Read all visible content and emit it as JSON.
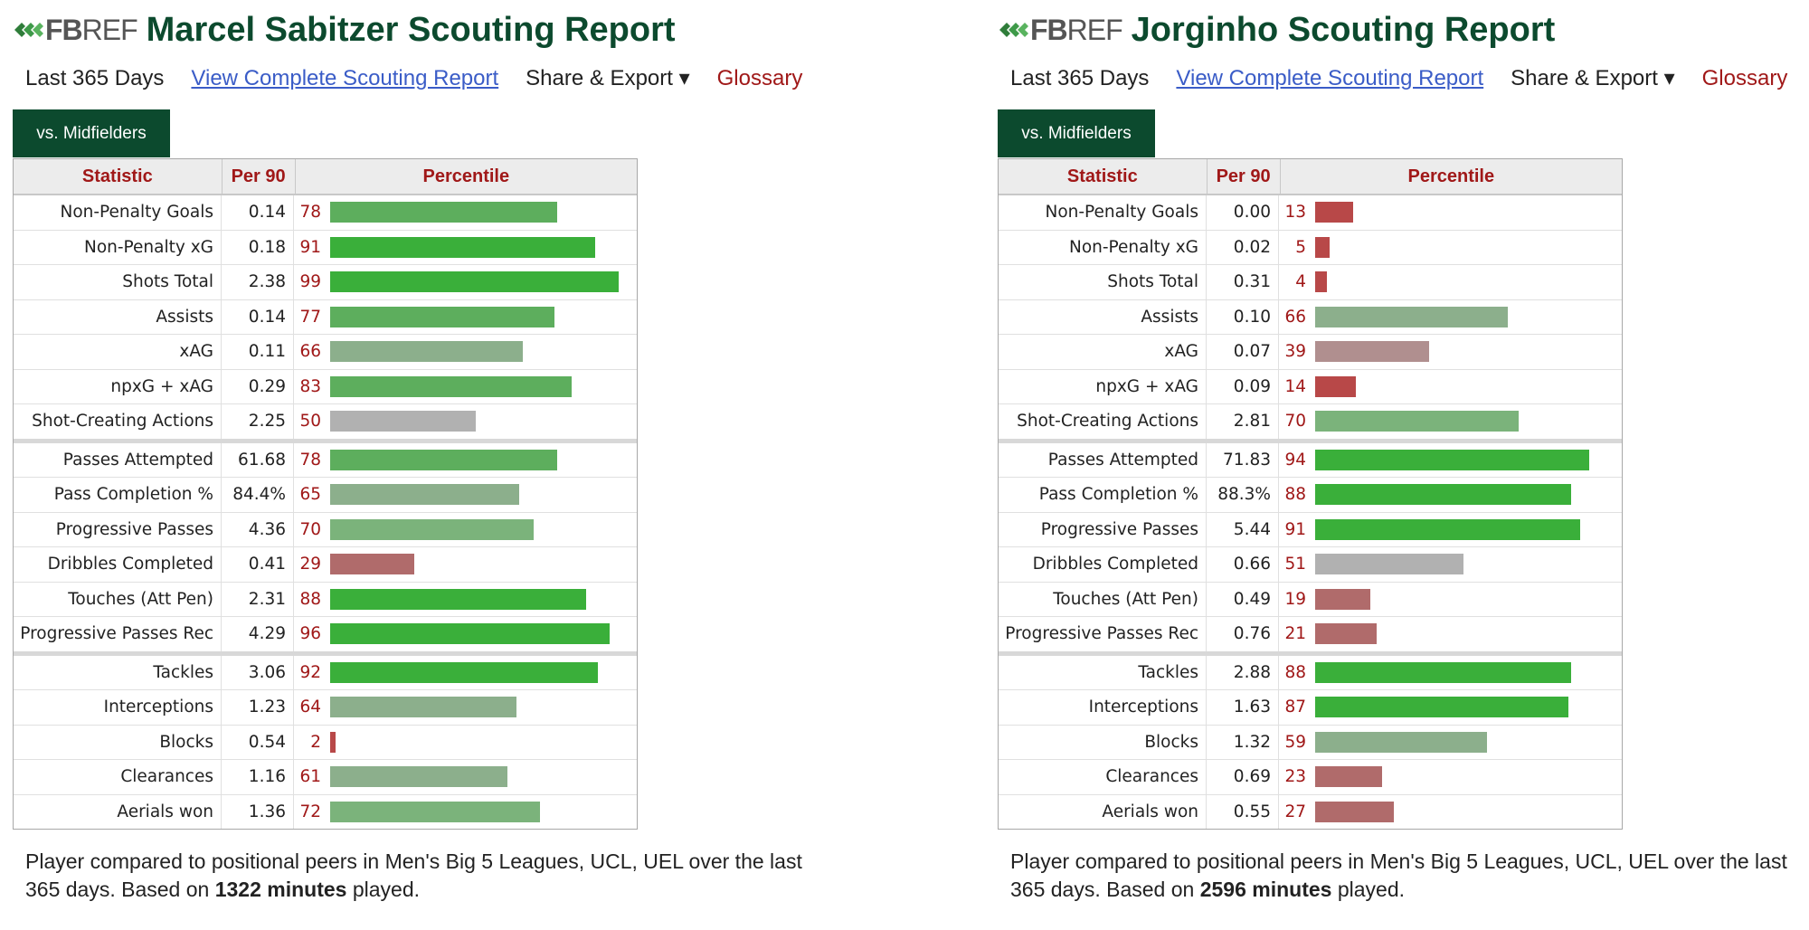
{
  "logo": {
    "fb": "FB",
    "ref": "REF"
  },
  "bar_colors": {
    "elite": "#3aaf3a",
    "above": "#5dae5d",
    "good": "#7bb37b",
    "slight": "#8caf8c",
    "avg": "#b1b1b1",
    "below_slight": "#b08f8f",
    "below": "#b06b6b",
    "poor": "#b84848"
  },
  "panels": [
    {
      "title": "Marcel Sabitzer Scouting Report",
      "nav": {
        "period": "Last 365 Days",
        "full_report": "View Complete Scouting Report",
        "share": "Share & Export ▾",
        "glossary": "Glossary"
      },
      "tab": "vs. Midfielders",
      "headers": {
        "stat": "Statistic",
        "per90": "Per 90",
        "percentile": "Percentile"
      },
      "rows": [
        {
          "stat": "Non-Penalty Goals",
          "per90": "0.14",
          "percentile": 78
        },
        {
          "stat": "Non-Penalty xG",
          "per90": "0.18",
          "percentile": 91
        },
        {
          "stat": "Shots Total",
          "per90": "2.38",
          "percentile": 99
        },
        {
          "stat": "Assists",
          "per90": "0.14",
          "percentile": 77
        },
        {
          "stat": "xAG",
          "per90": "0.11",
          "percentile": 66
        },
        {
          "stat": "npxG + xAG",
          "per90": "0.29",
          "percentile": 83
        },
        {
          "stat": "Shot-Creating Actions",
          "per90": "2.25",
          "percentile": 50
        },
        {
          "stat": "Passes Attempted",
          "per90": "61.68",
          "percentile": 78
        },
        {
          "stat": "Pass Completion %",
          "per90": "84.4%",
          "percentile": 65
        },
        {
          "stat": "Progressive Passes",
          "per90": "4.36",
          "percentile": 70
        },
        {
          "stat": "Dribbles Completed",
          "per90": "0.41",
          "percentile": 29
        },
        {
          "stat": "Touches (Att Pen)",
          "per90": "2.31",
          "percentile": 88
        },
        {
          "stat": "Progressive Passes Rec",
          "per90": "4.29",
          "percentile": 96
        },
        {
          "stat": "Tackles",
          "per90": "3.06",
          "percentile": 92
        },
        {
          "stat": "Interceptions",
          "per90": "1.23",
          "percentile": 64
        },
        {
          "stat": "Blocks",
          "per90": "0.54",
          "percentile": 2
        },
        {
          "stat": "Clearances",
          "per90": "1.16",
          "percentile": 61
        },
        {
          "stat": "Aerials won",
          "per90": "1.36",
          "percentile": 72
        }
      ],
      "footer": {
        "line": "Player compared to positional peers in Men's Big 5 Leagues, UCL, UEL over the last 365 days. Based on",
        "minutes": "1322 minutes",
        "tail": "played."
      }
    },
    {
      "title": "Jorginho Scouting Report",
      "nav": {
        "period": "Last 365 Days",
        "full_report": "View Complete Scouting Report",
        "share": "Share & Export ▾",
        "glossary": "Glossary"
      },
      "tab": "vs. Midfielders",
      "headers": {
        "stat": "Statistic",
        "per90": "Per 90",
        "percentile": "Percentile"
      },
      "rows": [
        {
          "stat": "Non-Penalty Goals",
          "per90": "0.00",
          "percentile": 13
        },
        {
          "stat": "Non-Penalty xG",
          "per90": "0.02",
          "percentile": 5
        },
        {
          "stat": "Shots Total",
          "per90": "0.31",
          "percentile": 4
        },
        {
          "stat": "Assists",
          "per90": "0.10",
          "percentile": 66
        },
        {
          "stat": "xAG",
          "per90": "0.07",
          "percentile": 39
        },
        {
          "stat": "npxG + xAG",
          "per90": "0.09",
          "percentile": 14
        },
        {
          "stat": "Shot-Creating Actions",
          "per90": "2.81",
          "percentile": 70
        },
        {
          "stat": "Passes Attempted",
          "per90": "71.83",
          "percentile": 94
        },
        {
          "stat": "Pass Completion %",
          "per90": "88.3%",
          "percentile": 88
        },
        {
          "stat": "Progressive Passes",
          "per90": "5.44",
          "percentile": 91
        },
        {
          "stat": "Dribbles Completed",
          "per90": "0.66",
          "percentile": 51
        },
        {
          "stat": "Touches (Att Pen)",
          "per90": "0.49",
          "percentile": 19
        },
        {
          "stat": "Progressive Passes Rec",
          "per90": "0.76",
          "percentile": 21
        },
        {
          "stat": "Tackles",
          "per90": "2.88",
          "percentile": 88
        },
        {
          "stat": "Interceptions",
          "per90": "1.63",
          "percentile": 87
        },
        {
          "stat": "Blocks",
          "per90": "1.32",
          "percentile": 59
        },
        {
          "stat": "Clearances",
          "per90": "0.69",
          "percentile": 23
        },
        {
          "stat": "Aerials won",
          "per90": "0.55",
          "percentile": 27
        }
      ],
      "footer": {
        "line": "Player compared to positional peers in Men's Big 5 Leagues, UCL, UEL over the last 365 days. Based on",
        "minutes": "2596 minutes",
        "tail": "played."
      }
    }
  ]
}
